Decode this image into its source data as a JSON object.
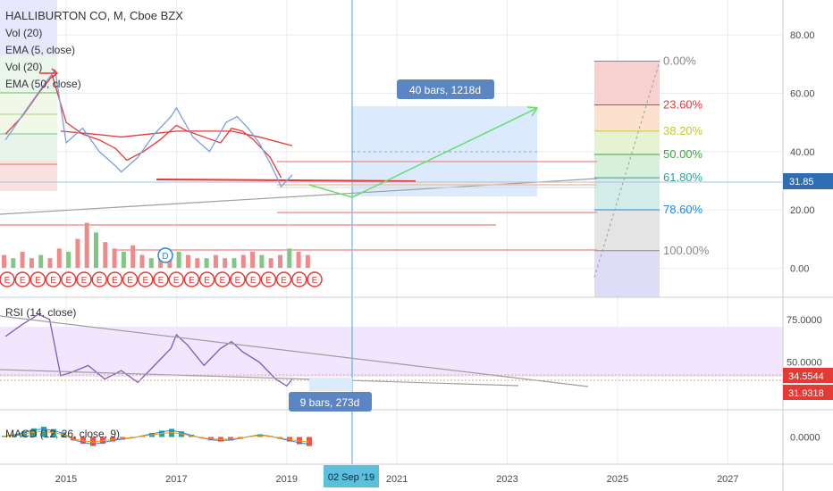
{
  "header": {
    "title": "HALLIBURTON CO, M, Cboe BZX",
    "indicators": [
      "Vol (20)",
      "EMA (5, close)",
      "Vol (20)",
      "EMA (50, close)"
    ]
  },
  "colors": {
    "grid": "#e9ecf2",
    "axis_text": "#4a4a4a",
    "price_line": "#5c6bc0",
    "ema_red": "#e53935",
    "ema_blue": "#7aa0e0",
    "green": "#43a047",
    "cross_line": "#4aa3d8",
    "rsi_band": "#f0e3ff",
    "rsi_line": "#7e57c2"
  },
  "chart_data": [
    {
      "type": "line",
      "title": "HALLIBURTON CO, M, Cboe BZX",
      "x_axis_ticks": [
        "2015",
        "2017",
        "2019",
        "2021",
        "2023",
        "2025",
        "2027"
      ],
      "x_range": [
        2013.8,
        2028.0
      ],
      "y_axis_ticks": [
        "0.00",
        "20.00",
        "40.00",
        "60.00",
        "80.00"
      ],
      "ylim": [
        -10,
        92
      ],
      "series": [
        {
          "name": "EMA (5, close)",
          "x": [
            2013.9,
            2014.2,
            2014.5,
            2014.75,
            2015.0,
            2015.3,
            2015.6,
            2015.9,
            2016.1,
            2016.4,
            2016.7,
            2017.0,
            2017.2,
            2017.5,
            2017.8,
            2018.0,
            2018.2,
            2018.4,
            2018.7,
            2018.9
          ],
          "values": [
            46,
            52,
            60,
            66,
            50,
            46,
            44,
            41,
            37,
            40,
            44,
            49,
            47,
            45,
            43,
            48,
            47,
            44,
            38,
            31
          ]
        },
        {
          "name": "EMA (50, close)",
          "x": [
            2014.9,
            2015.5,
            2016.0,
            2016.5,
            2017.0,
            2017.5,
            2018.0,
            2018.5,
            2019.1
          ],
          "values": [
            47,
            46,
            45,
            46,
            47,
            47,
            47,
            45,
            42
          ]
        },
        {
          "name": "close",
          "x": [
            2013.9,
            2014.3,
            2014.6,
            2014.8,
            2015.0,
            2015.3,
            2015.6,
            2015.9,
            2016.0,
            2016.3,
            2016.6,
            2016.9,
            2017.0,
            2017.3,
            2017.6,
            2017.9,
            2018.1,
            2018.3,
            2018.5,
            2018.7,
            2018.9,
            2019.1
          ],
          "values": [
            44,
            55,
            63,
            68,
            43,
            48,
            40,
            35,
            33,
            38,
            46,
            52,
            55,
            45,
            40,
            50,
            52,
            48,
            43,
            36,
            28,
            32
          ]
        }
      ],
      "price_label": "31.85",
      "date_label": "02 Sep '19",
      "projection_label": "40 bars, 1218d",
      "fib_levels": [
        {
          "label": "0.00%",
          "value": 71,
          "color": "#888888"
        },
        {
          "label": "23.60%",
          "value": 56,
          "color": "#e53935"
        },
        {
          "label": "38.20%",
          "value": 47,
          "color": "#c0ca33"
        },
        {
          "label": "50.00%",
          "value": 39,
          "color": "#43a047"
        },
        {
          "label": "61.80%",
          "value": 31,
          "color": "#26a69a"
        },
        {
          "label": "78.60%",
          "value": 20,
          "color": "#1e88e5"
        },
        {
          "label": "100.00%",
          "value": 6,
          "color": "#888888"
        }
      ],
      "volume_bars": [
        4,
        3,
        5,
        3,
        4,
        3,
        6,
        5,
        9,
        14,
        11,
        8,
        6,
        5,
        7,
        4,
        3,
        4,
        3,
        5,
        4,
        3,
        3,
        4,
        3,
        3,
        4,
        5,
        4,
        3,
        4,
        6,
        5,
        4
      ],
      "earnings_markers": 21
    },
    {
      "type": "line",
      "title": "RSI (14, close)",
      "y_axis_ticks": [
        "50.0000",
        "75.0000"
      ],
      "ylim": [
        22,
        88
      ],
      "band": [
        30,
        70
      ],
      "labels": [
        "34.5544",
        "31.9318"
      ],
      "annotation": "9 bars, 273d",
      "series": [
        {
          "name": "RSI (14, close)",
          "x": [
            2013.9,
            2014.2,
            2014.5,
            2014.7,
            2014.9,
            2015.1,
            2015.4,
            2015.7,
            2016.0,
            2016.3,
            2016.6,
            2016.9,
            2017.0,
            2017.2,
            2017.5,
            2017.8,
            2018.0,
            2018.2,
            2018.5,
            2018.8,
            2019.0,
            2019.1
          ],
          "values": [
            65,
            72,
            78,
            75,
            42,
            44,
            48,
            40,
            45,
            38,
            48,
            58,
            66,
            60,
            48,
            58,
            62,
            56,
            50,
            40,
            36,
            40
          ]
        }
      ]
    },
    {
      "type": "bar",
      "title": "MACD (12, 26, close, 9)",
      "y_axis_ticks": [
        "0.0000"
      ],
      "ylim": [
        -12,
        12
      ],
      "values": [
        0.5,
        1.2,
        2.5,
        3.8,
        4.5,
        3.5,
        2.0,
        -1.5,
        -3.0,
        -4.0,
        -3.0,
        -2.0,
        -1.2,
        -0.5,
        0.6,
        1.8,
        2.8,
        3.6,
        2.5,
        1.0,
        -0.5,
        -1.5,
        -2.0,
        -1.6,
        -0.8,
        0.4,
        1.2,
        0.5,
        -0.8,
        -2.0,
        -3.2,
        -4.0
      ]
    }
  ]
}
